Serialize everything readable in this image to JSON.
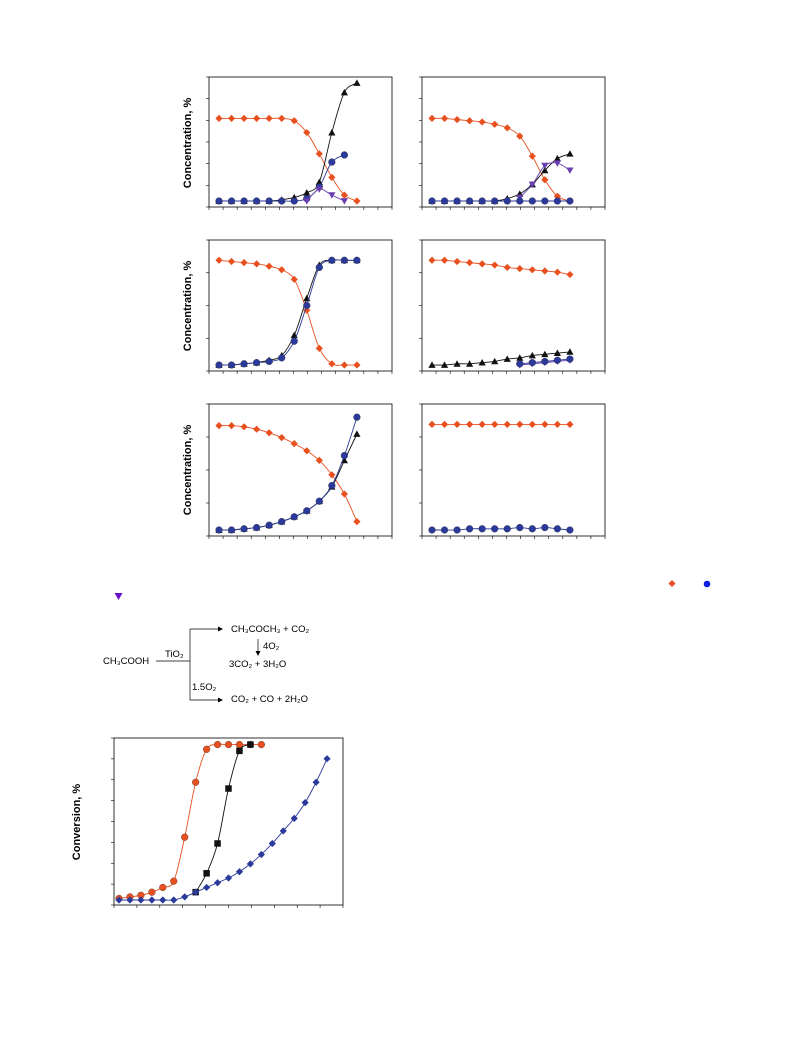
{
  "figure": {
    "ylabel_concentration": "Concentration, %",
    "ylabel_conversion": "Conversion, %"
  },
  "colors": {
    "red": "#e8501f",
    "blue": "#2b3a9a",
    "black": "#111111",
    "purple": "#6a3fb0",
    "legend_blue": "#0a1fe0",
    "legend_purple": "#6a0fc8"
  },
  "chart_data": [
    {
      "type": "line",
      "panel": "top-left",
      "xlim": [
        0,
        13
      ],
      "ylim": [
        0,
        100
      ],
      "series": [
        {
          "color": "red",
          "marker": "diamond",
          "x": [
            0,
            1,
            2,
            3,
            4,
            5,
            6,
            7,
            8,
            9,
            10,
            11
          ],
          "values": [
            70,
            70,
            70,
            70,
            70,
            70,
            68,
            58,
            40,
            20,
            5,
            0
          ]
        },
        {
          "color": "black",
          "marker": "triangle-up",
          "x": [
            0,
            1,
            2,
            3,
            4,
            5,
            6,
            7,
            8,
            9,
            10,
            11
          ],
          "values": [
            0,
            0,
            0,
            0,
            0,
            1,
            3,
            7,
            16,
            58,
            92,
            100
          ]
        },
        {
          "color": "blue",
          "marker": "circle",
          "x": [
            0,
            1,
            2,
            3,
            4,
            5,
            6,
            7,
            8,
            9,
            10
          ],
          "values": [
            0,
            0,
            0,
            0,
            0,
            0,
            0,
            2,
            12,
            33,
            39
          ]
        },
        {
          "color": "purple",
          "marker": "triangle-down",
          "x": [
            7,
            8,
            9,
            10
          ],
          "values": [
            0,
            10,
            5,
            0
          ]
        }
      ]
    },
    {
      "type": "line",
      "panel": "top-right",
      "xlim": [
        0,
        13
      ],
      "ylim": [
        0,
        100
      ],
      "series": [
        {
          "color": "red",
          "marker": "diamond",
          "x": [
            0,
            1,
            2,
            3,
            4,
            5,
            6,
            7,
            8,
            9,
            10,
            11
          ],
          "values": [
            70,
            70,
            69,
            68,
            67,
            65,
            62,
            55,
            38,
            18,
            4,
            0
          ]
        },
        {
          "color": "black",
          "marker": "triangle-up",
          "x": [
            0,
            1,
            2,
            3,
            4,
            5,
            6,
            7,
            8,
            9,
            10,
            11
          ],
          "values": [
            0,
            0,
            0,
            0,
            0,
            0,
            2,
            6,
            14,
            26,
            36,
            40
          ]
        },
        {
          "color": "purple",
          "marker": "triangle-down",
          "x": [
            7,
            8,
            9,
            10,
            11
          ],
          "values": [
            3,
            14,
            30,
            32,
            26
          ]
        },
        {
          "color": "blue",
          "marker": "circle",
          "x": [
            0,
            1,
            2,
            3,
            4,
            5,
            6,
            7,
            8,
            9,
            10,
            11
          ],
          "values": [
            0,
            0,
            0,
            0,
            0,
            0,
            0,
            0,
            0,
            0,
            0,
            0
          ]
        }
      ]
    },
    {
      "type": "line",
      "panel": "middle-left",
      "xlim": [
        0,
        13
      ],
      "ylim": [
        0,
        100
      ],
      "series": [
        {
          "color": "red",
          "marker": "diamond",
          "x": [
            0,
            1,
            2,
            3,
            4,
            5,
            6,
            7,
            8,
            9,
            10,
            11
          ],
          "values": [
            88,
            87,
            86,
            85,
            83,
            80,
            72,
            46,
            14,
            1,
            0,
            0
          ]
        },
        {
          "color": "black",
          "marker": "triangle-up",
          "x": [
            0,
            1,
            2,
            3,
            4,
            5,
            6,
            7,
            8,
            9,
            10,
            11
          ],
          "values": [
            0,
            0,
            1,
            2,
            4,
            8,
            25,
            56,
            84,
            88,
            88,
            88
          ]
        },
        {
          "color": "blue",
          "marker": "circle",
          "x": [
            0,
            1,
            2,
            3,
            4,
            5,
            6,
            7,
            8,
            9,
            10,
            11
          ],
          "values": [
            0,
            0,
            1,
            2,
            3,
            6,
            20,
            50,
            82,
            88,
            88,
            88
          ]
        }
      ]
    },
    {
      "type": "line",
      "panel": "middle-right",
      "xlim": [
        0,
        13
      ],
      "ylim": [
        0,
        100
      ],
      "series": [
        {
          "color": "red",
          "marker": "diamond",
          "x": [
            0,
            1,
            2,
            3,
            4,
            5,
            6,
            7,
            8,
            9,
            10,
            11
          ],
          "values": [
            88,
            88,
            87,
            86,
            85,
            84,
            82,
            81,
            80,
            79,
            78,
            76
          ]
        },
        {
          "color": "black",
          "marker": "triangle-up",
          "x": [
            0,
            1,
            2,
            3,
            4,
            5,
            6,
            7,
            8,
            9,
            10,
            11
          ],
          "values": [
            0,
            0,
            1,
            1,
            2,
            3,
            5,
            6,
            8,
            9,
            10,
            11
          ]
        },
        {
          "color": "purple",
          "marker": "triangle-down",
          "x": [
            7,
            8,
            9,
            10,
            11
          ],
          "values": [
            0,
            1,
            2,
            3,
            4
          ]
        },
        {
          "color": "blue",
          "marker": "circle",
          "x": [
            7,
            8,
            9,
            10,
            11
          ],
          "values": [
            1,
            2,
            3,
            4,
            5
          ]
        }
      ]
    },
    {
      "type": "line",
      "panel": "bottom-left",
      "xlim": [
        0,
        13
      ],
      "ylim": [
        0,
        100
      ],
      "series": [
        {
          "color": "red",
          "marker": "diamond",
          "x": [
            0,
            1,
            2,
            3,
            4,
            5,
            6,
            7,
            8,
            9,
            10,
            11
          ],
          "values": [
            87,
            87,
            86,
            84,
            81,
            77,
            72,
            66,
            58,
            46,
            30,
            7
          ]
        },
        {
          "color": "black",
          "marker": "triangle-up",
          "x": [
            0,
            1,
            2,
            3,
            4,
            5,
            6,
            7,
            8,
            9,
            10,
            11
          ],
          "values": [
            0,
            0,
            1,
            2,
            4,
            7,
            11,
            16,
            24,
            36,
            58,
            80
          ]
        },
        {
          "color": "blue",
          "marker": "circle",
          "x": [
            0,
            1,
            2,
            3,
            4,
            5,
            6,
            7,
            8,
            9,
            10,
            11
          ],
          "values": [
            0,
            0,
            1,
            2,
            4,
            7,
            11,
            16,
            24,
            37,
            62,
            94
          ]
        }
      ]
    },
    {
      "type": "line",
      "panel": "bottom-right",
      "xlim": [
        0,
        13
      ],
      "ylim": [
        0,
        100
      ],
      "series": [
        {
          "color": "red",
          "marker": "diamond",
          "x": [
            0,
            1,
            2,
            3,
            4,
            5,
            6,
            7,
            8,
            9,
            10,
            11
          ],
          "values": [
            88,
            88,
            88,
            88,
            88,
            88,
            88,
            88,
            88,
            88,
            88,
            88
          ]
        },
        {
          "color": "blue",
          "marker": "circle",
          "x": [
            0,
            1,
            2,
            3,
            4,
            5,
            6,
            7,
            8,
            9,
            10,
            11
          ],
          "values": [
            0,
            0,
            0,
            1,
            1,
            1,
            1,
            2,
            1,
            2,
            1,
            0
          ]
        }
      ]
    },
    {
      "type": "line",
      "panel": "conversion",
      "xlim": [
        0,
        20
      ],
      "ylim": [
        0,
        100
      ],
      "series": [
        {
          "color": "red",
          "marker": "circle",
          "x": [
            0,
            1,
            2,
            3,
            4,
            5,
            6,
            7,
            8,
            9,
            10,
            11,
            12,
            13
          ],
          "values": [
            1,
            2,
            3,
            5,
            8,
            12,
            40,
            75,
            96,
            99,
            99,
            99,
            99,
            99
          ]
        },
        {
          "color": "black",
          "marker": "square",
          "x": [
            7,
            8,
            9,
            10,
            11,
            12
          ],
          "values": [
            5,
            17,
            36,
            71,
            95,
            99
          ]
        },
        {
          "color": "blue",
          "marker": "diamond",
          "x": [
            0,
            1,
            2,
            3,
            4,
            5,
            6,
            7,
            8,
            9,
            10,
            11,
            12,
            13,
            14,
            15,
            16,
            17,
            18,
            19
          ],
          "values": [
            0,
            0,
            0,
            0,
            0,
            0,
            2,
            5,
            8,
            11,
            14,
            18,
            23,
            29,
            36,
            44,
            52,
            62,
            75,
            90
          ]
        }
      ]
    }
  ],
  "scheme": {
    "reactant": "CH₃COOH",
    "catalyst": "TiO₂",
    "product1": "CH₃COCH₃  +  CO₂",
    "oxygen1": "4O₂",
    "product1b": "3CO₂ + 3H₂O",
    "oxygen2": "1.5O₂",
    "product2": "CO₂ + CO  + 2H₂O"
  }
}
